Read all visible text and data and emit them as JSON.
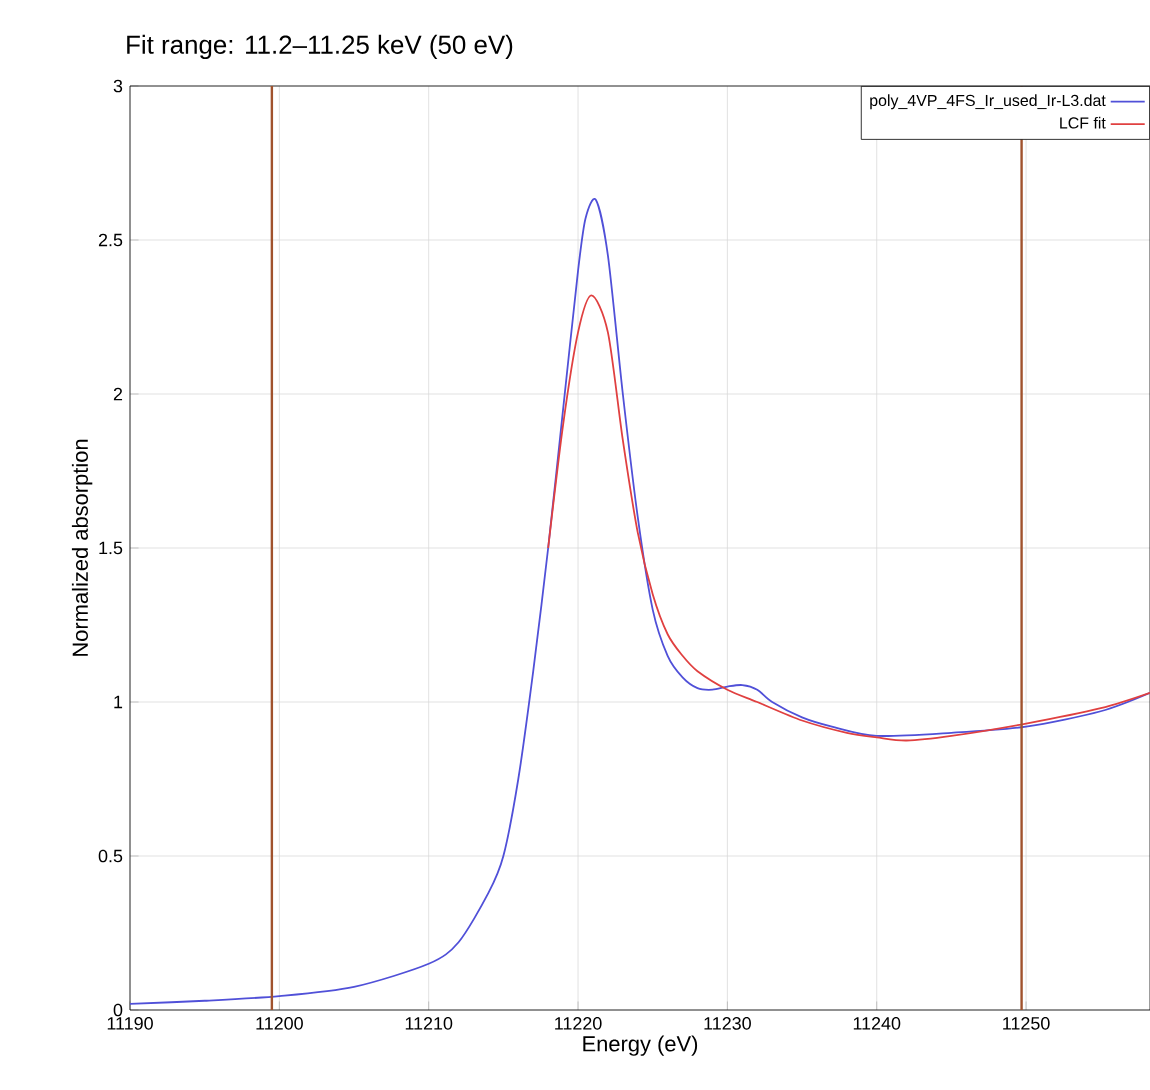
{
  "chart_data": {
    "type": "line",
    "title": "Fit range: 11.2–11.25 keV (50 eV)",
    "xlabel": "Energy    (eV)",
    "ylabel": "Normalized absorption",
    "xlim": [
      11190,
      11258.3
    ],
    "xticks": [
      11190,
      11200,
      11210,
      11220,
      11230,
      11240,
      11250
    ],
    "ylim": [
      0,
      3
    ],
    "yticks": [
      0,
      0.5,
      1,
      1.5,
      2,
      2.5,
      3
    ],
    "grid": true,
    "legend": "top right",
    "series": [
      {
        "name": "poly_4VP_4FS_Ir_used_Ir-L3.dat",
        "color": "#5050d8",
        "x": [
          11190,
          11195,
          11200,
          11205,
          11210,
          11212,
          11214,
          11215,
          11216,
          11217,
          11218,
          11219,
          11220,
          11220.5,
          11221.2,
          11222,
          11223,
          11224,
          11225,
          11226,
          11227,
          11228,
          11229,
          11230,
          11231,
          11232,
          11233,
          11235,
          11237,
          11240,
          11245,
          11250,
          11255,
          11258.3
        ],
        "values": [
          0.02,
          0.03,
          0.045,
          0.075,
          0.15,
          0.22,
          0.38,
          0.5,
          0.75,
          1.1,
          1.5,
          1.95,
          2.4,
          2.57,
          2.63,
          2.45,
          2.0,
          1.6,
          1.3,
          1.15,
          1.08,
          1.045,
          1.04,
          1.05,
          1.055,
          1.04,
          1.0,
          0.95,
          0.92,
          0.89,
          0.9,
          0.92,
          0.97,
          1.03
        ]
      },
      {
        "name": "LCF fit",
        "color": "#e04040",
        "x": [
          11218,
          11219,
          11220,
          11220.9,
          11222,
          11223,
          11224,
          11225,
          11226,
          11227,
          11228,
          11230,
          11232,
          11235,
          11238,
          11240,
          11242,
          11245,
          11250,
          11255,
          11258.3
        ],
        "values": [
          1.5,
          1.9,
          2.2,
          2.32,
          2.2,
          1.85,
          1.55,
          1.35,
          1.22,
          1.15,
          1.1,
          1.04,
          1.0,
          0.94,
          0.9,
          0.885,
          0.875,
          0.89,
          0.93,
          0.98,
          1.03
        ]
      }
    ],
    "ref_lines": [
      {
        "axis": "x",
        "value": 11199.5,
        "color": "#a0522d"
      },
      {
        "axis": "x",
        "value": 11249.7,
        "color": "#a0522d"
      }
    ]
  }
}
